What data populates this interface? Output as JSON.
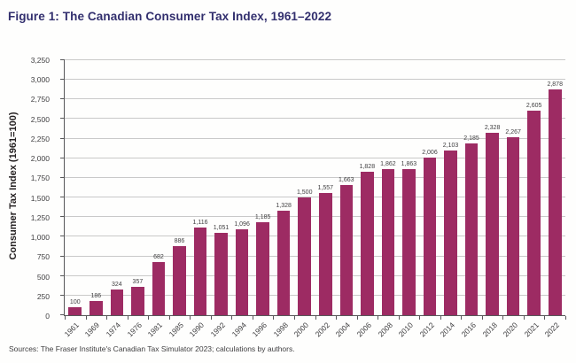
{
  "figure": {
    "title": "Figure 1: The Canadian Consumer Tax Index, 1961–2022",
    "source_note": "Sources: The Fraser Institute's Canadian Tax Simulator 2023; calculations by authors."
  },
  "colors": {
    "bar": "#9d2b63",
    "title_text": "#322f6e",
    "axis_line": "#58585a",
    "gridline": "#c9c9c9",
    "label_text": "#414042"
  },
  "chart_data": {
    "type": "bar",
    "title": "Figure 1: The Canadian Consumer Tax Index, 1961–2022",
    "xlabel": "",
    "ylabel": "Consumer Tax Index (1961=100)",
    "ylim": [
      0,
      3250
    ],
    "ytick_step": 250,
    "grid": true,
    "legend": "none",
    "categories": [
      "1961",
      "1969",
      "1974",
      "1976",
      "1981",
      "1985",
      "1990",
      "1992",
      "1994",
      "1996",
      "1998",
      "2000",
      "2002",
      "2004",
      "2006",
      "2008",
      "2010",
      "2012",
      "2014",
      "2016",
      "2018",
      "2020",
      "2021",
      "2022"
    ],
    "values": [
      100,
      186,
      324,
      357,
      682,
      886,
      1116,
      1051,
      1096,
      1185,
      1328,
      1500,
      1557,
      1663,
      1828,
      1862,
      1863,
      2006,
      2103,
      2185,
      2328,
      2267,
      2605,
      2878
    ],
    "bar_labels": [
      "100",
      "186",
      "324",
      "357",
      "682",
      "886",
      "1,116",
      "1,051",
      "1,096",
      "1,185",
      "1,328",
      "1,500",
      "1,557",
      "1,663",
      "1,828",
      "1,862",
      "1,863",
      "2,006",
      "2,103",
      "2,185",
      "2,328",
      "2,267",
      "2,605",
      "2,878"
    ]
  }
}
